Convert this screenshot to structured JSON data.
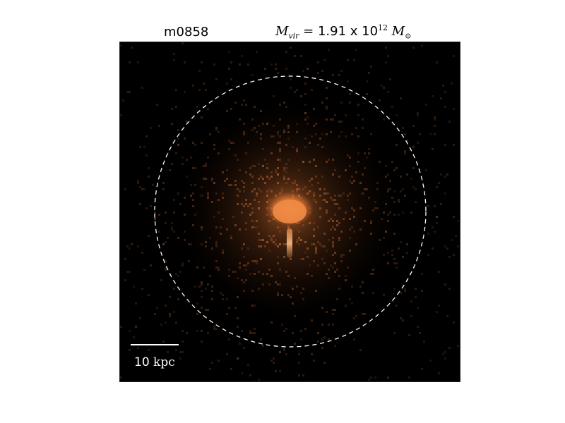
{
  "title": {
    "name": "m0858",
    "mass_symbol": "M",
    "mass_subscript": "vir",
    "mass_equals": " = ",
    "mass_value": "1.91 x 10",
    "mass_exponent": "12",
    "mass_unit": "M",
    "mass_unit_subscript": "⊙"
  },
  "scale_bar": {
    "value": "10",
    "unit": "kpc"
  },
  "colors": {
    "background": "#000000",
    "glow": "#e07a3a",
    "core": "#f08a45",
    "stream": "#f3b883",
    "circle": "#ffffff"
  }
}
